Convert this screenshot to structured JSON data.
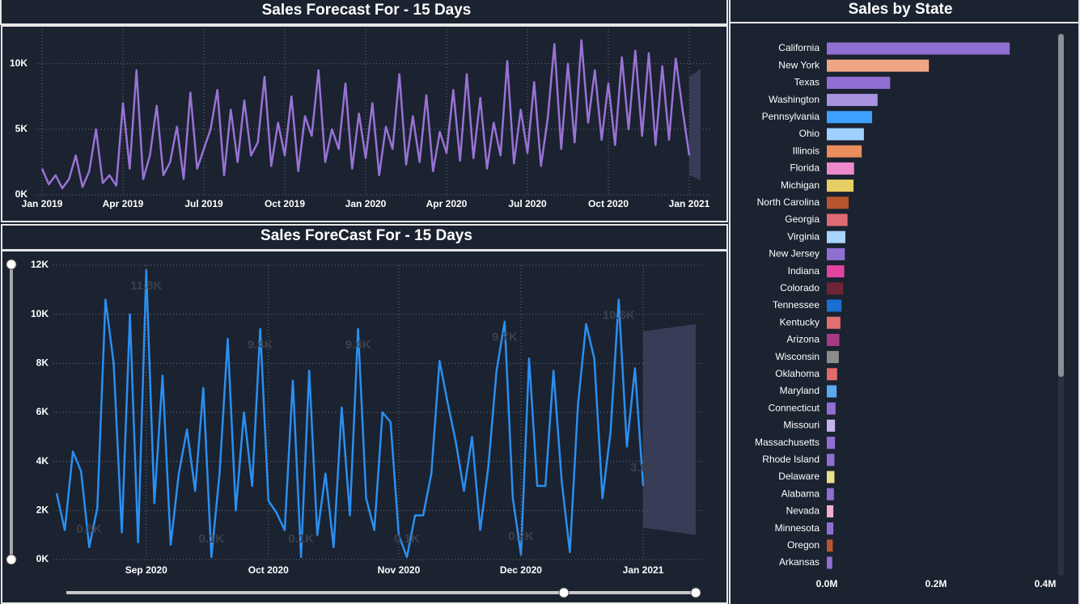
{
  "chart_data": [
    {
      "type": "line",
      "title": "Sales Forecast For - 15 Days",
      "color": "#9873d4",
      "categories": [
        "Jan 2019",
        null,
        null,
        null,
        null,
        null,
        null,
        null,
        null,
        null,
        null,
        null,
        "Apr 2019",
        null,
        null,
        null,
        null,
        null,
        null,
        null,
        null,
        null,
        null,
        null,
        "Jul 2019",
        null,
        null,
        null,
        null,
        null,
        null,
        null,
        null,
        null,
        null,
        null,
        "Oct 2019",
        null,
        null,
        null,
        null,
        null,
        null,
        null,
        null,
        null,
        null,
        null,
        "Jan 2020",
        null,
        null,
        null,
        null,
        null,
        null,
        null,
        null,
        null,
        null,
        null,
        "Apr 2020",
        null,
        null,
        null,
        null,
        null,
        null,
        null,
        null,
        null,
        null,
        null,
        "Jul 2020",
        null,
        null,
        null,
        null,
        null,
        null,
        null,
        null,
        null,
        null,
        null,
        "Oct 2020",
        null,
        null,
        null,
        null,
        null,
        null,
        null,
        null,
        null,
        null,
        null,
        "Jan 2021"
      ],
      "values": [
        2000,
        800,
        1500,
        500,
        1200,
        3000,
        600,
        1800,
        5000,
        900,
        1500,
        700,
        7000,
        2000,
        9500,
        1200,
        3000,
        6800,
        1500,
        2500,
        5200,
        1200,
        7800,
        2000,
        3500,
        5000,
        8000,
        1500,
        6500,
        2500,
        7200,
        3000,
        4000,
        9000,
        2200,
        5500,
        3000,
        7500,
        1800,
        6000,
        4500,
        9500,
        2500,
        5000,
        3500,
        8500,
        2000,
        6200,
        2800,
        7000,
        1500,
        5200,
        3500,
        9200,
        2300,
        6000,
        2500,
        7600,
        1800,
        4800,
        3200,
        8000,
        2600,
        9200,
        2800,
        7400,
        2000,
        5500,
        3000,
        10200,
        2400,
        6500,
        3200,
        8600,
        2200,
        5800,
        11500,
        3500,
        10000,
        4000,
        11800,
        5500,
        9500,
        4200,
        8500,
        3800,
        10500,
        5000,
        11000,
        4500,
        10800,
        3800,
        9800,
        4200,
        10400,
        6500,
        3000
      ],
      "forecast": {
        "upper": [
          9000,
          9600
        ],
        "lower": [
          1500,
          1100
        ],
        "color": "#3b3f5c"
      },
      "ylim": [
        0,
        12700
      ],
      "yticks": [
        {
          "value": 0,
          "label": "0K"
        },
        {
          "value": 5000,
          "label": "5K"
        },
        {
          "value": 10000,
          "label": "10K"
        }
      ],
      "grid": true
    },
    {
      "type": "line",
      "title": "Sales ForeCast For - 15 Days",
      "color": "#2b8ff0",
      "categories": [
        null,
        null,
        null,
        null,
        null,
        null,
        null,
        null,
        null,
        null,
        null,
        "Sep 2020",
        null,
        null,
        null,
        null,
        null,
        null,
        null,
        null,
        null,
        null,
        null,
        null,
        null,
        null,
        "Oct 2020",
        null,
        null,
        null,
        null,
        null,
        null,
        null,
        null,
        null,
        null,
        null,
        null,
        null,
        null,
        null,
        "Nov 2020",
        null,
        null,
        null,
        null,
        null,
        null,
        null,
        null,
        null,
        null,
        null,
        null,
        null,
        null,
        "Dec 2020",
        null,
        null,
        null,
        null,
        null,
        null,
        null,
        null,
        null,
        null,
        null,
        null,
        null,
        null,
        "Jan 2021"
      ],
      "values": [
        2700,
        1200,
        4400,
        3600,
        500,
        2100,
        10600,
        8000,
        1100,
        10000,
        700,
        11800,
        2300,
        7500,
        600,
        3500,
        5300,
        2800,
        7000,
        100,
        3500,
        9000,
        2000,
        6000,
        3000,
        9400,
        2400,
        1900,
        1200,
        7300,
        100,
        7700,
        1000,
        3500,
        500,
        6200,
        1800,
        9400,
        2500,
        1200,
        6000,
        5600,
        1000,
        100,
        1800,
        1800,
        3500,
        8100,
        6400,
        4800,
        2800,
        5000,
        1200,
        3800,
        7700,
        9700,
        2500,
        200,
        8200,
        3000,
        3000,
        7700,
        3200,
        300,
        6300,
        9600,
        8200,
        2500,
        5200,
        10600,
        4600,
        7800,
        3000
      ],
      "value_labels": [
        null,
        null,
        null,
        null,
        "0.5K",
        null,
        null,
        null,
        null,
        null,
        null,
        "11.8K",
        null,
        null,
        null,
        null,
        null,
        null,
        null,
        "0.1K",
        null,
        null,
        null,
        null,
        null,
        "9.4K",
        null,
        null,
        null,
        null,
        "0.1K",
        null,
        null,
        null,
        null,
        null,
        null,
        "9.4K",
        null,
        null,
        null,
        null,
        null,
        "0.1K",
        null,
        null,
        null,
        null,
        null,
        null,
        null,
        null,
        null,
        null,
        null,
        "9.7K",
        null,
        "0.2K",
        null,
        null,
        null,
        null,
        null,
        null,
        null,
        null,
        null,
        null,
        null,
        "10.6K",
        null,
        null,
        "3.0K"
      ],
      "forecast": {
        "upper": [
          9300,
          9600
        ],
        "lower": [
          1300,
          1000
        ],
        "color": "#3b3f5c"
      },
      "ylim": [
        0,
        12000
      ],
      "yticks": [
        {
          "value": 0,
          "label": "0K"
        },
        {
          "value": 2000,
          "label": "2K"
        },
        {
          "value": 4000,
          "label": "4K"
        },
        {
          "value": 6000,
          "label": "6K"
        },
        {
          "value": 8000,
          "label": "8K"
        },
        {
          "value": 10000,
          "label": "10K"
        },
        {
          "value": 12000,
          "label": "12K"
        }
      ],
      "grid": true
    },
    {
      "type": "hbar",
      "title": "Sales by State",
      "categories": [
        "California",
        "New York",
        "Texas",
        "Washington",
        "Pennsylvania",
        "Ohio",
        "Illinois",
        "Florida",
        "Michigan",
        "North Carolina",
        "Georgia",
        "Virginia",
        "New Jersey",
        "Indiana",
        "Colorado",
        "Tennessee",
        "Kentucky",
        "Arizona",
        "Wisconsin",
        "Oklahoma",
        "Maryland",
        "Connecticut",
        "Missouri",
        "Massachusetts",
        "Rhode Island",
        "Delaware",
        "Alabama",
        "Nevada",
        "Minnesota",
        "Oregon",
        "Arkansas"
      ],
      "values": [
        335000,
        187000,
        116000,
        93000,
        83000,
        68000,
        64000,
        50000,
        49000,
        40000,
        38000,
        34000,
        33000,
        32000,
        30000,
        27000,
        25000,
        23000,
        22000,
        19000,
        18000,
        16000,
        15000,
        15000,
        14000,
        14000,
        13000,
        12000,
        12000,
        11000,
        10000
      ],
      "colors": [
        "#8f6fd1",
        "#f0a583",
        "#8f6fd1",
        "#a993e0",
        "#3ea0ff",
        "#9fd0ff",
        "#eb8d5c",
        "#ee88cc",
        "#e8cf64",
        "#b8552e",
        "#e06a75",
        "#a8d4ff",
        "#8f6fd1",
        "#e2449f",
        "#6e2434",
        "#1a6fd0",
        "#e07070",
        "#a83a86",
        "#8c8c8c",
        "#e06a6a",
        "#5aaaf0",
        "#8f6fd1",
        "#c5b3ea",
        "#8f6fd1",
        "#8f6fd1",
        "#ece08a",
        "#8f6fd1",
        "#f0b0d0",
        "#8f6fd1",
        "#b8552e",
        "#8f6fd1"
      ],
      "xlim": [
        0,
        400000
      ],
      "xticks": [
        {
          "value": 0,
          "label": "0.0M"
        },
        {
          "value": 200000,
          "label": "0.2M"
        },
        {
          "value": 400000,
          "label": "0.4M"
        }
      ]
    }
  ]
}
